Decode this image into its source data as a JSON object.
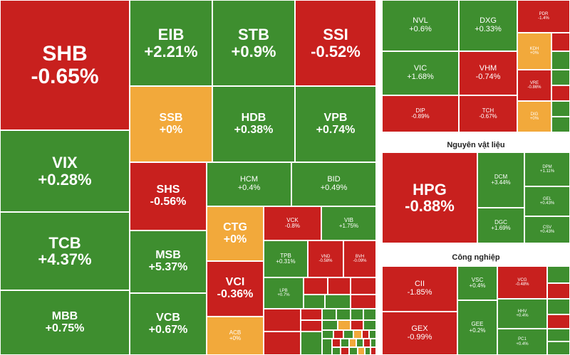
{
  "sections": {
    "materials": "Nguyên vật liệu",
    "industrial": "Công nghiệp"
  },
  "tiles": {
    "SHB": {
      "sym": "SHB",
      "pct": "-0.65%"
    },
    "EIB": {
      "sym": "EIB",
      "pct": "+2.21%"
    },
    "STB": {
      "sym": "STB",
      "pct": "+0.9%"
    },
    "SSI": {
      "sym": "SSI",
      "pct": "-0.52%"
    },
    "VIX": {
      "sym": "VIX",
      "pct": "+0.28%"
    },
    "SSB": {
      "sym": "SSB",
      "pct": "+0%"
    },
    "HDB": {
      "sym": "HDB",
      "pct": "+0.38%"
    },
    "VPB": {
      "sym": "VPB",
      "pct": "+0.74%"
    },
    "TCB": {
      "sym": "TCB",
      "pct": "+4.37%"
    },
    "SHS": {
      "sym": "SHS",
      "pct": "-0.56%"
    },
    "HCM": {
      "sym": "HCM",
      "pct": "+0.4%"
    },
    "BID": {
      "sym": "BID",
      "pct": "+0.49%"
    },
    "MSB": {
      "sym": "MSB",
      "pct": "+5.37%"
    },
    "CTG": {
      "sym": "CTG",
      "pct": "+0%"
    },
    "VCK": {
      "sym": "VCK",
      "pct": "-0.8%"
    },
    "VIB": {
      "sym": "VIB",
      "pct": "+1.75%"
    },
    "MBB": {
      "sym": "MBB",
      "pct": "+0.75%"
    },
    "VCB": {
      "sym": "VCB",
      "pct": "+0.67%"
    },
    "VCI": {
      "sym": "VCI",
      "pct": "-0.36%"
    },
    "TPB": {
      "sym": "TPB",
      "pct": "+0.31%"
    },
    "VND": {
      "sym": "VND",
      "pct": "-0.58%"
    },
    "BVH": {
      "sym": "BVH",
      "pct": "-0.09%"
    },
    "LPB": {
      "sym": "LPB",
      "pct": "+0.7%"
    },
    "ACB": {
      "sym": "ACB",
      "pct": "+0%"
    },
    "NVL": {
      "sym": "NVL",
      "pct": "+0.6%"
    },
    "DXG": {
      "sym": "DXG",
      "pct": "+0.33%"
    },
    "PDR": {
      "sym": "PDR",
      "pct": "-1.4%"
    },
    "KDH": {
      "sym": "KDH",
      "pct": "+0%"
    },
    "VIC": {
      "sym": "VIC",
      "pct": "+1.68%"
    },
    "VHM": {
      "sym": "VHM",
      "pct": "-0.74%"
    },
    "VRE": {
      "sym": "VRE",
      "pct": "-0.86%"
    },
    "DIG": {
      "sym": "DIG",
      "pct": "+0%"
    },
    "DIP": {
      "sym": "DIP",
      "pct": "-0.89%"
    },
    "TCH": {
      "sym": "TCH",
      "pct": "-0.67%"
    },
    "HPG": {
      "sym": "HPG",
      "pct": "-0.88%"
    },
    "DCM": {
      "sym": "DCM",
      "pct": "+3.44%"
    },
    "DPM": {
      "sym": "DPM",
      "pct": "+1.11%"
    },
    "DGC": {
      "sym": "DGC",
      "pct": "+1.69%"
    },
    "GEL": {
      "sym": "GEL",
      "pct": "+0.43%"
    },
    "CSV": {
      "sym": "CSV",
      "pct": "+0.43%"
    },
    "CII": {
      "sym": "CII",
      "pct": "-1.85%"
    },
    "VSC": {
      "sym": "VSC",
      "pct": "+0.4%"
    },
    "VCG": {
      "sym": "VCG",
      "pct": "-0.48%"
    },
    "HHV": {
      "sym": "HHV",
      "pct": "+0.4%"
    },
    "GEX": {
      "sym": "GEX",
      "pct": "-0.99%"
    },
    "GEE": {
      "sym": "GEE",
      "pct": "+0.2%"
    },
    "PC1": {
      "sym": "PC1",
      "pct": "+0.4%"
    }
  },
  "colors": {
    "up": "#3e8e2f",
    "down": "#c8201e",
    "flat": "#f2a93b"
  }
}
